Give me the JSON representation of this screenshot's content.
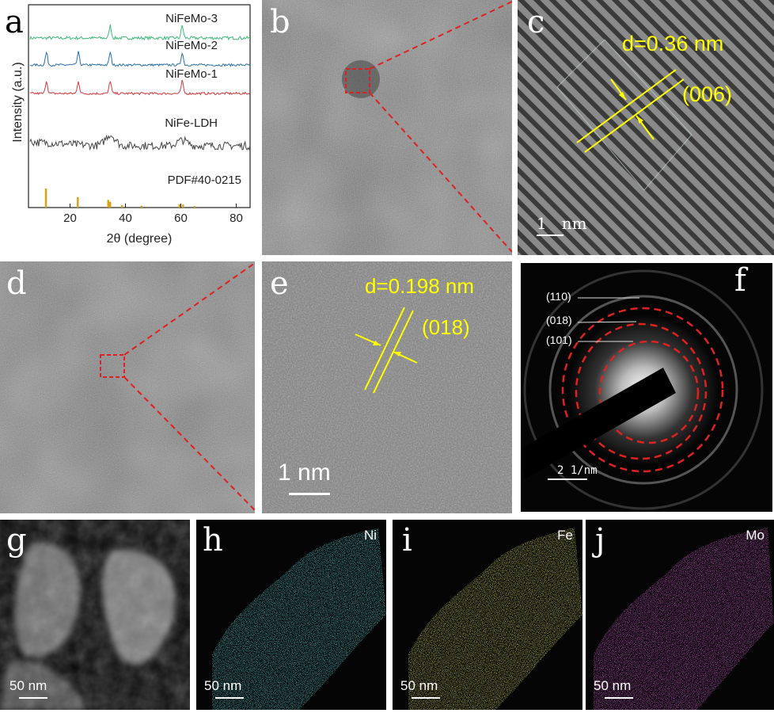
{
  "panels": {
    "a": {
      "letter": "a",
      "ylabel": "Intensity (a.u.)",
      "xlabel": "2θ (degree)",
      "ref_label": "PDF#40-0215"
    },
    "b": {
      "letter": "b"
    },
    "c": {
      "letter": "c",
      "d_spacing": "d=0.36 nm",
      "plane": "(006)",
      "scale": "1   nm"
    },
    "d": {
      "letter": "d"
    },
    "e": {
      "letter": "e",
      "d_spacing": "d=0.198 nm",
      "plane": "(018)",
      "scale": "1 nm"
    },
    "f": {
      "letter": "f",
      "rings": [
        "(110)",
        "(018)",
        "(101)"
      ],
      "scale": "2 1/nm"
    },
    "g": {
      "letter": "g",
      "scale": "50 nm"
    },
    "h": {
      "letter": "h",
      "element": "Ni",
      "scale": "50 nm",
      "color": "#22c4cc"
    },
    "i": {
      "letter": "i",
      "element": "Fe",
      "scale": "50 nm",
      "color": "#d4d22a"
    },
    "j": {
      "letter": "j",
      "element": "Mo",
      "scale": "50 nm",
      "color": "#cc22c4"
    }
  },
  "chart_data": {
    "type": "line",
    "title": "",
    "xlabel": "2θ (degree)",
    "ylabel": "Intensity (a.u.)",
    "xlim": [
      5,
      85
    ],
    "xticks": [
      20,
      40,
      60,
      80
    ],
    "series": [
      {
        "name": "NiFeMo-3",
        "color": "#3cb878",
        "peaks": [
          34.5,
          60.5
        ]
      },
      {
        "name": "NiFeMo-2",
        "color": "#2a6ea6",
        "peaks": [
          11.5,
          23.0,
          34.5,
          60.5
        ]
      },
      {
        "name": "NiFeMo-1",
        "color": "#d0393f",
        "peaks": [
          11.5,
          23.0,
          34.5,
          60.5
        ]
      },
      {
        "name": "NiFe-LDH",
        "color": "#444444",
        "peaks": [
          34.5,
          60.5
        ]
      }
    ],
    "reference": {
      "name": "PDF#40-0215",
      "color": "#d9a020",
      "positions": [
        11.3,
        22.8,
        33.8,
        34.5,
        38.8,
        45.8,
        59.5,
        60.8,
        65.0
      ],
      "heights": [
        1.0,
        0.55,
        0.4,
        0.3,
        0.12,
        0.1,
        0.18,
        0.16,
        0.08
      ]
    }
  }
}
